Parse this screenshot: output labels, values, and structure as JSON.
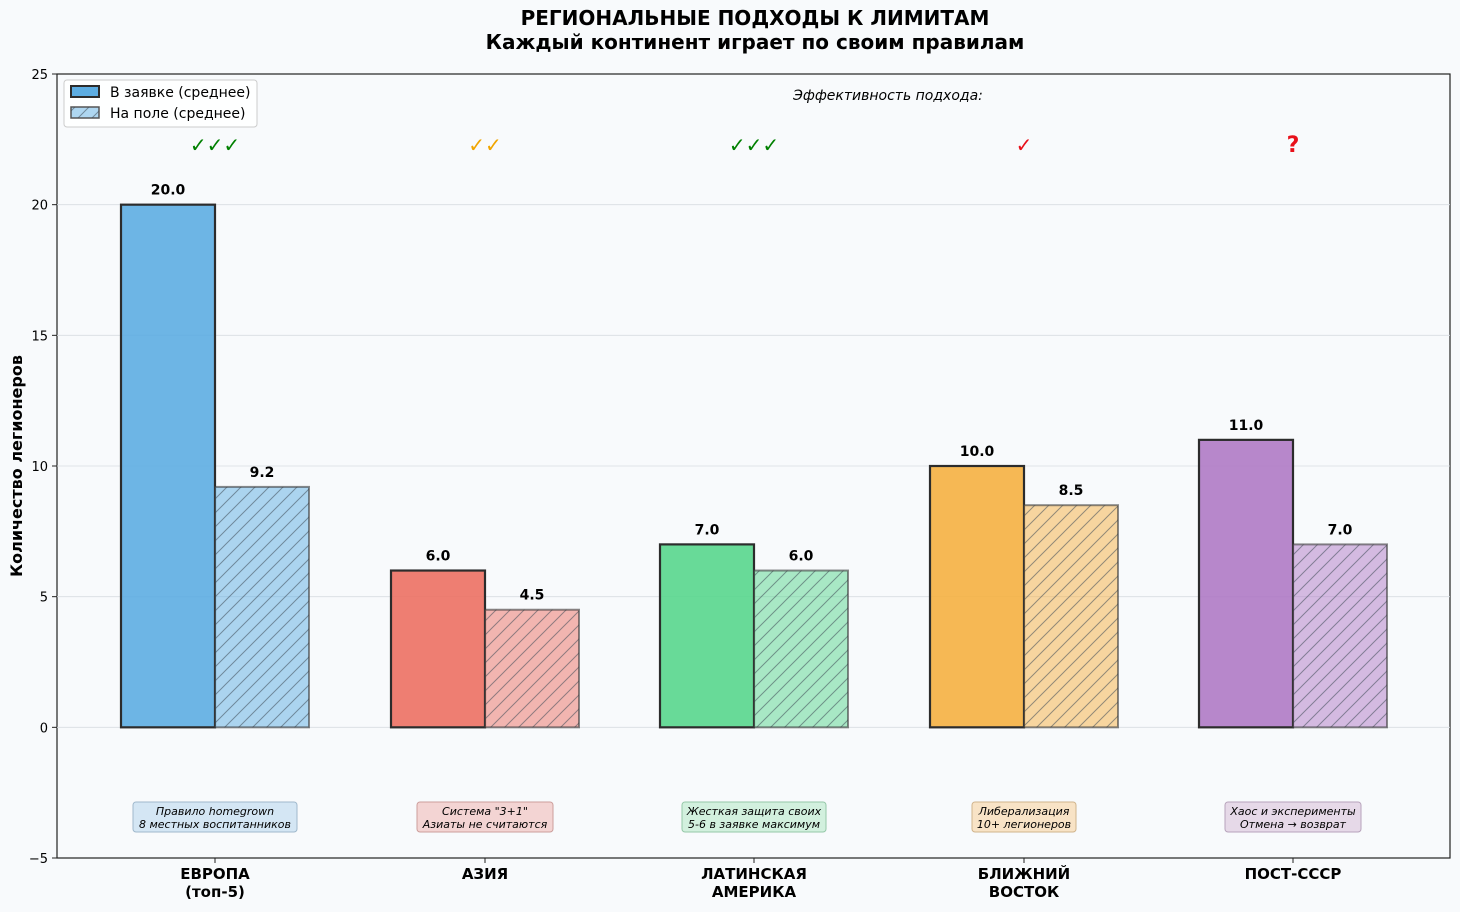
{
  "chart_data": {
    "type": "bar",
    "title": "РЕГИОНАЛЬНЫЕ ПОДХОДЫ К ЛИМИТАМ",
    "subtitle": "Каждый континент играет по своим правилам",
    "ylabel": "Количество легионеров",
    "xlabel": "",
    "ylim": [
      -5,
      25
    ],
    "yticks": [
      -5,
      0,
      5,
      10,
      15,
      20,
      25
    ],
    "ytick_labels": [
      "−5",
      "0",
      "5",
      "10",
      "15",
      "20",
      "25"
    ],
    "grid": true,
    "legend_position": "top-left",
    "categories": [
      "ЕВРОПА\n(топ-5)",
      "АЗИЯ",
      "ЛАТИНСКАЯ\nАМЕРИКА",
      "БЛИЖНИЙ\nВОСТОК",
      "ПОСТ-СССР"
    ],
    "category_colors": [
      "#5dade2",
      "#ec7063",
      "#58d68d",
      "#f5b041",
      "#af7ac5"
    ],
    "series": [
      {
        "name": "В заявке (среднее)",
        "values": [
          20.0,
          6.0,
          7.0,
          10.0,
          11.0
        ],
        "labels": [
          "20.0",
          "6.0",
          "7.0",
          "10.0",
          "11.0"
        ],
        "hatched": false
      },
      {
        "name": "На поле (среднее)",
        "values": [
          9.2,
          4.5,
          6.0,
          8.5,
          7.0
        ],
        "labels": [
          "9.2",
          "4.5",
          "6.0",
          "8.5",
          "7.0"
        ],
        "hatched": true
      }
    ],
    "effectiveness_header": "Эффективность подхода:",
    "effectiveness": [
      {
        "mark": "✓✓✓",
        "color": "#008000"
      },
      {
        "mark": "✓✓",
        "color": "#f0a500"
      },
      {
        "mark": "✓✓✓",
        "color": "#008000"
      },
      {
        "mark": "✓",
        "color": "#e8101a"
      },
      {
        "mark": "?",
        "color": "#e8101a"
      }
    ],
    "notes": [
      {
        "lines": [
          "Правило homegrown",
          "8 местных воспитанников"
        ],
        "bg": "#d4e6f4",
        "border": "#9fb8cc"
      },
      {
        "lines": [
          "Система \"3+1\"",
          "Азиаты не считаются"
        ],
        "bg": "#f3d4d3",
        "border": "#cc9e9b"
      },
      {
        "lines": [
          "Жесткая защита своих",
          "5-6 в заявке максимум"
        ],
        "bg": "#d2f0de",
        "border": "#95c8a8"
      },
      {
        "lines": [
          "Либерализация",
          "10+ легионеров"
        ],
        "bg": "#f8e3c6",
        "border": "#d0b48c"
      },
      {
        "lines": [
          "Хаос и эксперименты",
          "Отмена → возврат"
        ],
        "bg": "#e6d9e8",
        "border": "#b7a3bb"
      }
    ]
  }
}
